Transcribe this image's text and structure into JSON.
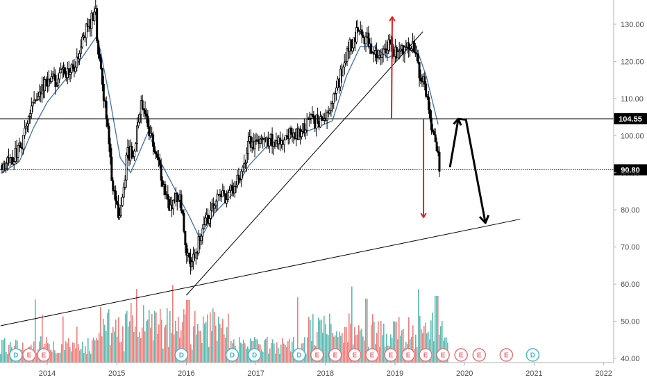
{
  "chart_data": {
    "type": "candlestick",
    "x_ticks": [
      "2014",
      "2015",
      "2016",
      "2017",
      "2018",
      "2019",
      "2020",
      "2021",
      "2022"
    ],
    "y_ticks": [
      "40.00",
      "50.00",
      "60.00",
      "70.00",
      "80.00",
      "90.00",
      "100.00",
      "110.00",
      "120.00",
      "130.00"
    ],
    "ylim": [
      38,
      138
    ],
    "xlim": [
      2013.33,
      2022.1
    ],
    "grid": false,
    "price_levels": [
      {
        "label": "104.55",
        "value": 104.55,
        "style": "solid"
      },
      {
        "label": "90.80",
        "value": 90.8,
        "style": "dotted"
      }
    ],
    "price_path": [
      [
        2013.35,
        92
      ],
      [
        2013.5,
        94
      ],
      [
        2013.65,
        98
      ],
      [
        2013.8,
        110
      ],
      [
        2014.0,
        114
      ],
      [
        2014.2,
        116
      ],
      [
        2014.4,
        118
      ],
      [
        2014.55,
        128
      ],
      [
        2014.7,
        134
      ],
      [
        2014.72,
        125
      ],
      [
        2014.85,
        105
      ],
      [
        2014.95,
        85
      ],
      [
        2015.05,
        78
      ],
      [
        2015.15,
        95
      ],
      [
        2015.25,
        96
      ],
      [
        2015.35,
        108
      ],
      [
        2015.5,
        100
      ],
      [
        2015.62,
        90
      ],
      [
        2015.75,
        80
      ],
      [
        2015.9,
        84
      ],
      [
        2016.0,
        70
      ],
      [
        2016.07,
        64
      ],
      [
        2016.15,
        70
      ],
      [
        2016.25,
        75
      ],
      [
        2016.4,
        82
      ],
      [
        2016.6,
        84
      ],
      [
        2016.75,
        88
      ],
      [
        2016.9,
        98
      ],
      [
        2017.1,
        98
      ],
      [
        2017.3,
        99
      ],
      [
        2017.6,
        101
      ],
      [
        2017.8,
        104
      ],
      [
        2018.0,
        104
      ],
      [
        2018.15,
        112
      ],
      [
        2018.3,
        122
      ],
      [
        2018.45,
        128
      ],
      [
        2018.6,
        126
      ],
      [
        2018.75,
        120
      ],
      [
        2018.9,
        124
      ],
      [
        2019.0,
        122
      ],
      [
        2019.15,
        124
      ],
      [
        2019.25,
        125
      ],
      [
        2019.35,
        117
      ],
      [
        2019.45,
        112
      ],
      [
        2019.55,
        100
      ],
      [
        2019.65,
        91
      ]
    ],
    "ma_path": [
      [
        2013.35,
        90
      ],
      [
        2013.6,
        93
      ],
      [
        2013.8,
        102
      ],
      [
        2014.0,
        109
      ],
      [
        2014.3,
        116
      ],
      [
        2014.5,
        121
      ],
      [
        2014.72,
        127
      ],
      [
        2014.9,
        110
      ],
      [
        2015.05,
        94
      ],
      [
        2015.2,
        90
      ],
      [
        2015.45,
        101
      ],
      [
        2015.6,
        94
      ],
      [
        2015.85,
        85
      ],
      [
        2016.05,
        78
      ],
      [
        2016.2,
        72
      ],
      [
        2016.4,
        79
      ],
      [
        2016.65,
        84
      ],
      [
        2016.9,
        92
      ],
      [
        2017.15,
        97
      ],
      [
        2017.5,
        99.5
      ],
      [
        2017.85,
        102
      ],
      [
        2018.1,
        104
      ],
      [
        2018.3,
        116
      ],
      [
        2018.5,
        124
      ],
      [
        2018.7,
        124
      ],
      [
        2018.9,
        121
      ],
      [
        2019.1,
        123
      ],
      [
        2019.3,
        124
      ],
      [
        2019.45,
        116
      ],
      [
        2019.62,
        103
      ]
    ],
    "trendlines": [
      {
        "from": [
          2013.33,
          48.8
        ],
        "to": [
          2020.8,
          77.5
        ],
        "color": "#000000"
      },
      {
        "from": [
          2016.0,
          57
        ],
        "to": [
          2019.4,
          128
        ],
        "color": "#000000"
      }
    ],
    "annotations": [
      {
        "type": "arrow",
        "color": "#e02020",
        "from": [
          2018.95,
          104.55
        ],
        "to": [
          2018.96,
          132
        ]
      },
      {
        "type": "arrow",
        "color": "#e02020",
        "from": [
          2019.41,
          104.55
        ],
        "to": [
          2019.41,
          78
        ]
      },
      {
        "type": "polyline-arrow",
        "color": "#000000",
        "points": [
          [
            2019.79,
            91.5
          ],
          [
            2019.91,
            104.5
          ],
          [
            2020.02,
            104.3
          ],
          [
            2020.3,
            76.5
          ]
        ]
      }
    ],
    "event_markers": [
      {
        "letter": "D",
        "kind": "dividend",
        "x": 2013.55
      },
      {
        "letter": "E",
        "kind": "earnings",
        "x": 2013.74
      },
      {
        "letter": "E",
        "kind": "earnings",
        "x": 2013.95
      },
      {
        "letter": "D",
        "kind": "dividend",
        "x": 2015.93
      },
      {
        "letter": "D",
        "kind": "dividend",
        "x": 2016.66
      },
      {
        "letter": "D",
        "kind": "dividend",
        "x": 2016.98
      },
      {
        "letter": "D",
        "kind": "dividend",
        "x": 2017.62
      },
      {
        "letter": "E",
        "kind": "earnings",
        "x": 2017.88
      },
      {
        "letter": "E",
        "kind": "earnings",
        "x": 2018.14
      },
      {
        "letter": "E",
        "kind": "earnings",
        "x": 2018.42
      },
      {
        "letter": "E",
        "kind": "earnings",
        "x": 2018.67
      },
      {
        "letter": "E",
        "kind": "earnings",
        "x": 2018.94
      },
      {
        "letter": "E",
        "kind": "earnings",
        "x": 2019.19
      },
      {
        "letter": "E",
        "kind": "earnings",
        "x": 2019.44
      },
      {
        "letter": "E",
        "kind": "earnings",
        "x": 2019.69
      },
      {
        "letter": "E",
        "kind": "earnings",
        "x": 2019.95
      },
      {
        "letter": "E",
        "kind": "earnings",
        "x": 2020.21
      },
      {
        "letter": "E",
        "kind": "earnings",
        "x": 2020.6
      },
      {
        "letter": "D",
        "kind": "dividend",
        "x": 2020.98
      }
    ],
    "colors": {
      "up": "#26a69a",
      "down": "#ef5350",
      "ma": "#3d6fb6",
      "axis_text": "#4a4a4a",
      "tag_bg": "#000000",
      "dividend": "#4bb8c7",
      "earnings": "#e8727a"
    }
  }
}
